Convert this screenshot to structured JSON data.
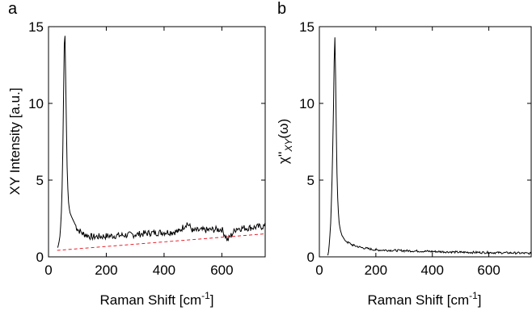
{
  "chart_data": [
    {
      "panel_label": "a",
      "type": "line",
      "xlabel": "Raman Shift [cm",
      "xlabel_sup": "-1",
      "xlabel_end": "]",
      "ylabel": "XY Intensity [a.u.]",
      "xlim": [
        0,
        750
      ],
      "ylim": [
        0,
        15
      ],
      "xticks": [
        "0",
        "200",
        "400",
        "600"
      ],
      "yticks": [
        "0",
        "5",
        "10",
        "15"
      ],
      "xtick_values": [
        0,
        200,
        400,
        600
      ],
      "ytick_values": [
        0,
        5,
        10,
        15
      ],
      "series": [
        {
          "style": "solid",
          "color": "#000000",
          "noise_amplitude": 0.22,
          "x": [
            32,
            36,
            40,
            44,
            47,
            50,
            52,
            54,
            55,
            56,
            57,
            58,
            60,
            62,
            64,
            66,
            68,
            70,
            74,
            80,
            90,
            100,
            120,
            150,
            200,
            250,
            300,
            350,
            400,
            450,
            480,
            500,
            550,
            600,
            620,
            650,
            700,
            750
          ],
          "y": [
            0.6,
            0.9,
            1.4,
            2.6,
            4.5,
            7.5,
            10.5,
            13.2,
            14.5,
            14.9,
            14.4,
            13.2,
            10.8,
            8.3,
            6.2,
            4.9,
            4.0,
            3.4,
            2.9,
            2.6,
            2.2,
            1.8,
            1.5,
            1.3,
            1.35,
            1.4,
            1.45,
            1.55,
            1.6,
            1.65,
            2.2,
            1.7,
            1.75,
            1.8,
            1.1,
            1.85,
            1.9,
            2.0
          ]
        },
        {
          "style": "dashed",
          "color": "#e8202a",
          "x": [
            30,
            750
          ],
          "y": [
            0.42,
            1.5
          ]
        }
      ]
    },
    {
      "panel_label": "b",
      "type": "line",
      "xlabel": "Raman Shift [cm",
      "xlabel_sup": "-1",
      "xlabel_end": "]",
      "ylabel": "χ''",
      "ylabel_sub": "XY",
      "ylabel_end": "(ω)",
      "xlim": [
        0,
        750
      ],
      "ylim": [
        0,
        15
      ],
      "xticks": [
        "0",
        "200",
        "400",
        "600"
      ],
      "yticks": [
        "0",
        "5",
        "10",
        "15"
      ],
      "xtick_values": [
        0,
        200,
        400,
        600
      ],
      "ytick_values": [
        0,
        5,
        10,
        15
      ],
      "series": [
        {
          "style": "solid",
          "color": "#000000",
          "noise_amplitude": 0.07,
          "x": [
            30,
            33,
            36,
            40,
            44,
            47,
            50,
            52,
            54,
            55,
            56,
            57,
            58,
            60,
            62,
            64,
            66,
            68,
            70,
            75,
            80,
            90,
            100,
            120,
            150,
            200,
            300,
            400,
            500,
            600,
            700,
            750
          ],
          "y": [
            0.1,
            0.4,
            1.0,
            2.2,
            4.2,
            6.8,
            9.8,
            12.3,
            13.9,
            14.3,
            14.0,
            12.8,
            10.6,
            8.0,
            5.8,
            4.3,
            3.3,
            2.7,
            2.2,
            1.7,
            1.4,
            1.1,
            0.95,
            0.75,
            0.6,
            0.45,
            0.4,
            0.35,
            0.3,
            0.28,
            0.25,
            0.22
          ]
        }
      ]
    }
  ]
}
